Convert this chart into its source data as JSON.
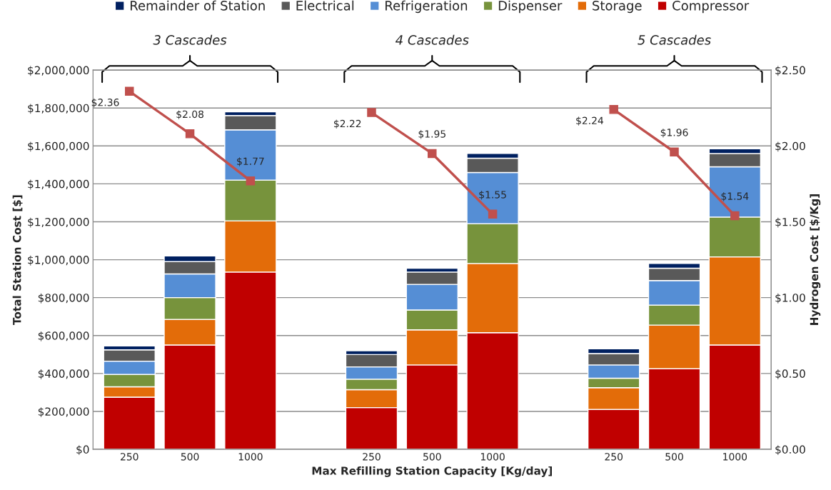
{
  "chart_data": {
    "type": "bar",
    "stacked": true,
    "categories": [
      "250",
      "500",
      "1000",
      null,
      "250",
      "500",
      "1000",
      null,
      "250",
      "500",
      "1000"
    ],
    "xlabel": "Max Refilling Station Capacity [Kg/day]",
    "ylabel": "Total Station Cost [$]",
    "y2label": "Hydrogen Cost [$/Kg]",
    "series": [
      {
        "name": "Compressor",
        "color": "#c00000",
        "values": [
          275000,
          550000,
          935000,
          null,
          220000,
          445000,
          615000,
          null,
          210000,
          425000,
          550000
        ]
      },
      {
        "name": "Storage",
        "color": "#e36c09",
        "values": [
          55000,
          135000,
          270000,
          null,
          95000,
          185000,
          365000,
          null,
          115000,
          230000,
          465000
        ]
      },
      {
        "name": "Dispenser",
        "color": "#77933c",
        "values": [
          65000,
          115000,
          215000,
          null,
          55000,
          105000,
          210000,
          null,
          50000,
          105000,
          210000
        ]
      },
      {
        "name": "Refrigeration",
        "color": "#558ed5",
        "values": [
          70000,
          125000,
          265000,
          null,
          65000,
          135000,
          270000,
          null,
          70000,
          130000,
          265000
        ]
      },
      {
        "name": "Electrical",
        "color": "#595959",
        "values": [
          60000,
          65000,
          75000,
          null,
          65000,
          65000,
          75000,
          null,
          60000,
          65000,
          70000
        ]
      },
      {
        "name": "Remainder of Station",
        "color": "#002060",
        "values": [
          20000,
          30000,
          20000,
          null,
          20000,
          20000,
          25000,
          null,
          25000,
          25000,
          25000
        ]
      },
      {
        "type": "line",
        "axis": "y2",
        "color": "#c0504d",
        "marker": "square",
        "value_labels": [
          "$2.36",
          "$2.08",
          "$1.77",
          null,
          "$2.22",
          "$1.95",
          "$1.55",
          null,
          "$2.24",
          "$1.96",
          "$1.54"
        ],
        "values": [
          2.36,
          2.08,
          1.77,
          null,
          2.22,
          1.95,
          1.55,
          null,
          2.24,
          1.96,
          1.54
        ]
      }
    ],
    "ylim": [
      0,
      2000000
    ],
    "yticks": [
      {
        "value": 0,
        "label": "$0"
      },
      {
        "value": 200000,
        "label": "$200,000"
      },
      {
        "value": 400000,
        "label": "$400,000"
      },
      {
        "value": 600000,
        "label": "$600,000"
      },
      {
        "value": 800000,
        "label": "$800,000"
      },
      {
        "value": 1000000,
        "label": "$1,000,000"
      },
      {
        "value": 1200000,
        "label": "$1,200,000"
      },
      {
        "value": 1400000,
        "label": "$1,400,000"
      },
      {
        "value": 1600000,
        "label": "$1,600,000"
      },
      {
        "value": 1800000,
        "label": "$1,800,000"
      },
      {
        "value": 2000000,
        "label": "$2,000,000"
      }
    ],
    "y2lim": [
      0,
      2.5
    ],
    "y2ticks": [
      {
        "value": 0,
        "label": "$0.00"
      },
      {
        "value": 0.5,
        "label": "$0.50"
      },
      {
        "value": 1.0,
        "label": "$1.00"
      },
      {
        "value": 1.5,
        "label": "$1.50"
      },
      {
        "value": 2.0,
        "label": "$2.00"
      },
      {
        "value": 2.5,
        "label": "$2.50"
      }
    ],
    "annotations": [
      "3 Cascades",
      "4 Cascades",
      "5 Cascades"
    ],
    "grid": "y",
    "legend": "top"
  }
}
